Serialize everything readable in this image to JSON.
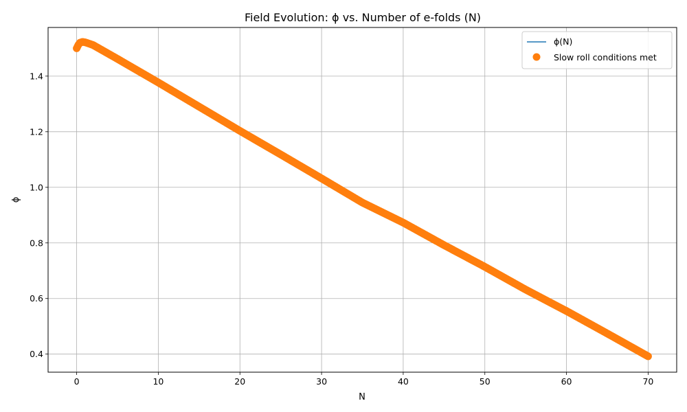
{
  "chart_data": {
    "type": "scatter",
    "title": "Field Evolution: ϕ vs. Number of e-folds (N)",
    "xlabel": "N",
    "ylabel": "ϕ",
    "xlim": [
      -3.5,
      73.5
    ],
    "ylim": [
      0.335,
      1.575
    ],
    "xticks": [
      0,
      10,
      20,
      30,
      40,
      50,
      60,
      70
    ],
    "yticks": [
      0.4,
      0.6,
      0.8,
      1.0,
      1.2,
      1.4
    ],
    "ytick_labels": [
      "0.4",
      "0.6",
      "0.8",
      "1.0",
      "1.2",
      "1.4"
    ],
    "grid": true,
    "legend_position": "top-right",
    "series": [
      {
        "name": "ϕ(N)",
        "kind": "line",
        "color": "#1f77b4",
        "x": [
          0,
          0.2,
          0.4,
          0.7,
          1.0,
          2,
          5,
          10,
          15,
          20,
          25,
          30,
          35,
          40,
          45,
          50,
          55,
          60,
          65,
          70
        ],
        "y": [
          1.5,
          1.512,
          1.52,
          1.523,
          1.522,
          1.512,
          1.462,
          1.377,
          1.29,
          1.203,
          1.118,
          1.032,
          0.945,
          0.873,
          0.792,
          0.714,
          0.632,
          0.555,
          0.474,
          0.392
        ]
      },
      {
        "name": "Slow roll conditions met",
        "kind": "markers",
        "color": "#ff7f0e",
        "x": [
          0,
          0.2,
          0.4,
          0.7,
          1.0,
          2,
          5,
          10,
          15,
          20,
          25,
          30,
          35,
          40,
          45,
          50,
          55,
          60,
          65,
          70
        ],
        "y": [
          1.5,
          1.512,
          1.52,
          1.523,
          1.522,
          1.512,
          1.462,
          1.377,
          1.29,
          1.203,
          1.118,
          1.032,
          0.945,
          0.873,
          0.792,
          0.714,
          0.632,
          0.555,
          0.474,
          0.392
        ]
      }
    ]
  }
}
